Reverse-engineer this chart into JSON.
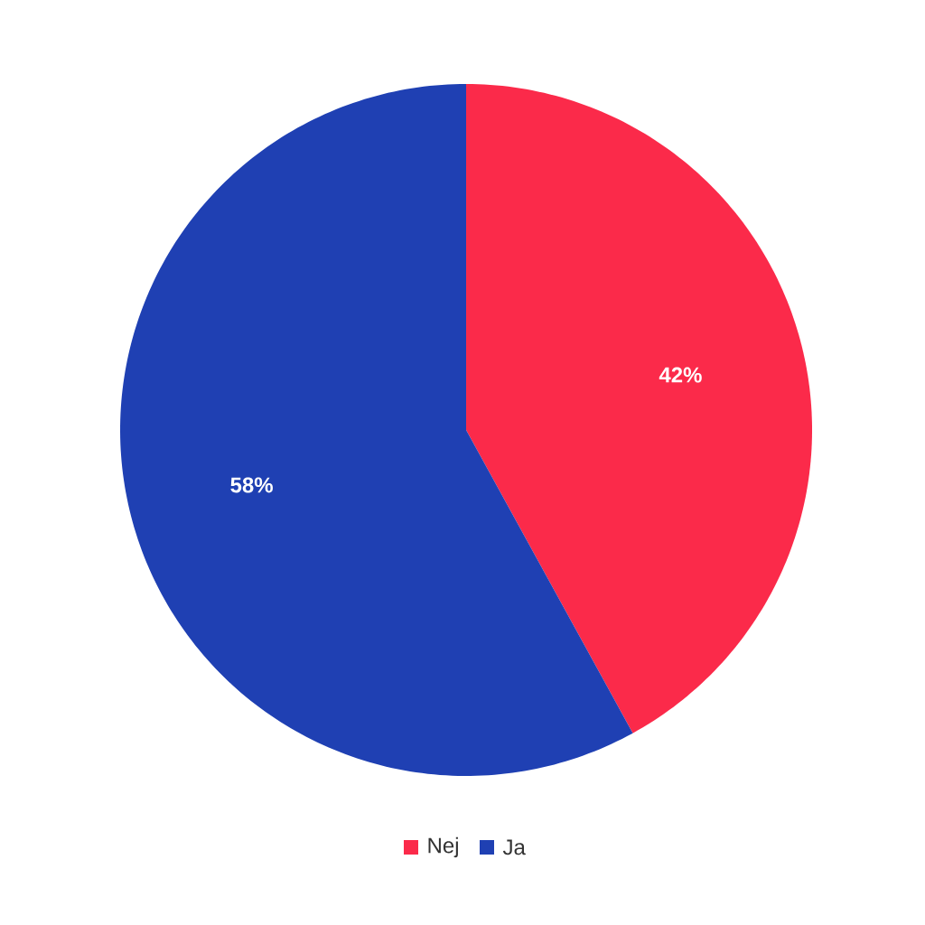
{
  "chart_data": {
    "type": "pie",
    "categories": [
      "Nej",
      "Ja"
    ],
    "values": [
      42,
      58
    ],
    "colors": [
      "#fb2a4a",
      "#1f40b3"
    ],
    "value_labels": [
      "42%",
      "58%"
    ],
    "legend": "bottom"
  }
}
